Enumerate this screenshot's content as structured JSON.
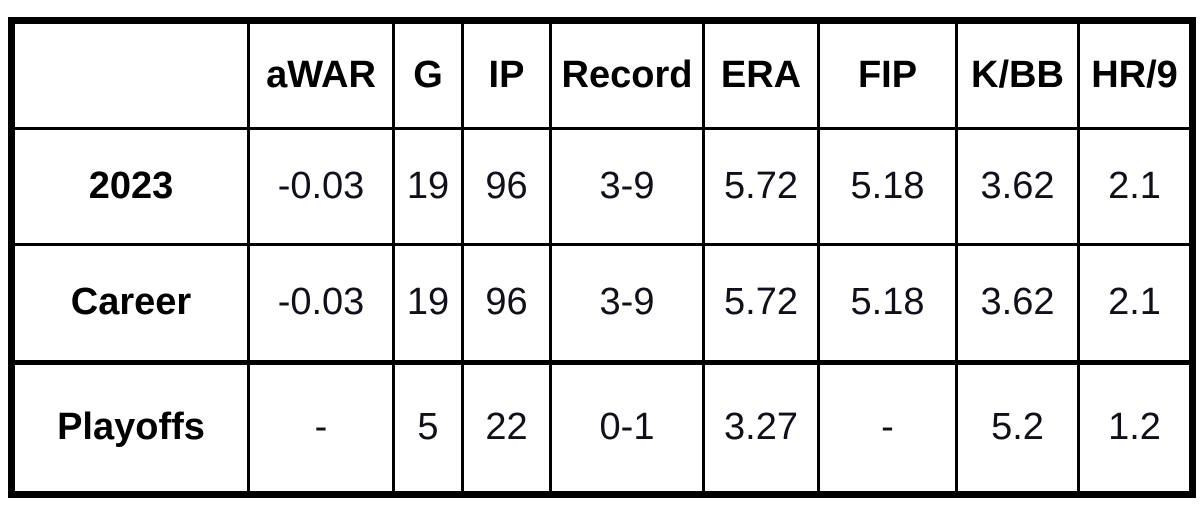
{
  "chart_data": {
    "type": "table",
    "columns": [
      "",
      "aWAR",
      "G",
      "IP",
      "Record",
      "ERA",
      "FIP",
      "K/BB",
      "HR/9"
    ],
    "rows": [
      {
        "label": "2023",
        "values": [
          "-0.03",
          "19",
          "96",
          "3-9",
          "5.72",
          "5.18",
          "3.62",
          "2.1"
        ]
      },
      {
        "label": "Career",
        "values": [
          "-0.03",
          "19",
          "96",
          "3-9",
          "5.72",
          "5.18",
          "3.62",
          "2.1"
        ]
      },
      {
        "label": "Playoffs",
        "values": [
          "-",
          "5",
          "22",
          "0-1",
          "3.27",
          "-",
          "5.2",
          "1.2"
        ]
      }
    ]
  },
  "colors": {
    "border": "#000000",
    "header_text": "#000000",
    "value_text": "#10101a",
    "background": "#ffffff"
  }
}
